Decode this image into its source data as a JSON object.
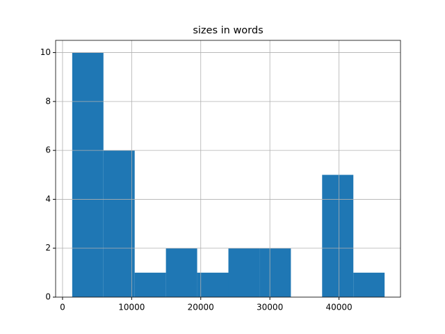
{
  "chart_data": {
    "type": "histogram",
    "title": "sizes in words",
    "bins": [
      1400,
      5920,
      10440,
      14960,
      19480,
      24000,
      28520,
      33040,
      37560,
      42080,
      46600
    ],
    "values": [
      10,
      6,
      1,
      2,
      1,
      2,
      2,
      0,
      5,
      1
    ],
    "color": "#1f77b4",
    "xlim": [
      -1000,
      48900
    ],
    "xticks": [
      0,
      10000,
      20000,
      30000,
      40000
    ],
    "ylim": [
      0,
      10.5
    ],
    "yticks": [
      0,
      2,
      4,
      6,
      8,
      10
    ],
    "grid": true
  }
}
